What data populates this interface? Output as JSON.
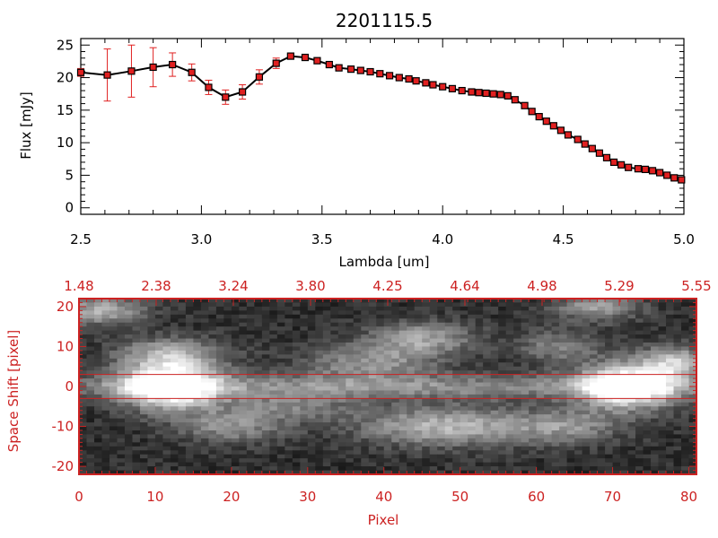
{
  "chart_data": [
    {
      "type": "line",
      "title": "2201115.5",
      "xlabel": "Lambda [um]",
      "ylabel": "Flux [mJy]",
      "xlim": [
        2.5,
        5.0
      ],
      "ylim": [
        -1,
        26
      ],
      "xticks": [
        "2.5",
        "3.0",
        "3.5",
        "4.0",
        "4.5",
        "5.0"
      ],
      "yticks": [
        "0",
        "5",
        "10",
        "15",
        "20",
        "25"
      ],
      "line_color": "#000000",
      "marker_color": "#e02020",
      "errorbar_color": "#e02020",
      "grid": false,
      "series": [
        {
          "x": [
            2.5,
            2.61,
            2.71,
            2.8,
            2.88,
            2.96,
            3.03,
            3.1,
            3.17,
            3.24,
            3.31,
            3.37,
            3.43,
            3.48,
            3.53,
            3.57,
            3.62,
            3.66,
            3.7,
            3.74,
            3.78,
            3.82,
            3.86,
            3.89,
            3.93,
            3.96,
            4.0,
            4.04,
            4.08,
            4.12,
            4.15,
            4.18,
            4.21,
            4.24,
            4.27,
            4.3,
            4.34,
            4.37,
            4.4,
            4.43,
            4.46,
            4.49,
            4.52,
            4.56,
            4.59,
            4.62,
            4.65,
            4.68,
            4.71,
            4.74,
            4.77,
            4.81,
            4.84,
            4.87,
            4.9,
            4.93,
            4.96,
            4.99
          ],
          "y": [
            20.8,
            20.4,
            21.0,
            21.6,
            22.0,
            20.8,
            18.5,
            17.0,
            17.8,
            20.1,
            22.2,
            23.3,
            23.1,
            22.6,
            22.0,
            21.5,
            21.3,
            21.1,
            20.9,
            20.6,
            20.3,
            20.0,
            19.8,
            19.5,
            19.2,
            18.9,
            18.6,
            18.3,
            18.0,
            17.8,
            17.7,
            17.6,
            17.5,
            17.4,
            17.2,
            16.6,
            15.7,
            14.8,
            14.0,
            13.3,
            12.6,
            11.9,
            11.2,
            10.5,
            9.8,
            9.1,
            8.4,
            7.7,
            7.0,
            6.6,
            6.2,
            6.0,
            5.9,
            5.7,
            5.4,
            5.0,
            4.6,
            4.3
          ],
          "yerr": [
            0.6,
            4.0,
            4.0,
            3.0,
            1.8,
            1.3,
            1.1,
            1.1,
            1.1,
            1.1,
            0.8,
            0.3,
            0.2,
            0.2,
            0.2,
            0.2,
            0.2,
            0.2,
            0.2,
            0.2,
            0.2,
            0.2,
            0.2,
            0.2,
            0.2,
            0.2,
            0.2,
            0.2,
            0.2,
            0.2,
            0.2,
            0.2,
            0.2,
            0.2,
            0.2,
            0.2,
            0.2,
            0.2,
            0.2,
            0.2,
            0.2,
            0.2,
            0.2,
            0.2,
            0.2,
            0.2,
            0.2,
            0.2,
            0.2,
            0.2,
            0.2,
            0.2,
            0.2,
            0.2,
            0.2,
            0.2,
            0.2,
            0.2
          ]
        }
      ]
    },
    {
      "type": "heatmap",
      "xlabel": "Pixel",
      "ylabel": "Space Shift [pixel]",
      "xlim": [
        0,
        81
      ],
      "ylim": [
        -22,
        22
      ],
      "xticks": [
        "0",
        "10",
        "20",
        "30",
        "40",
        "50",
        "60",
        "70",
        "80"
      ],
      "yticks": [
        "-20",
        "-10",
        "0",
        "10",
        "20"
      ],
      "top_ticks": [
        "1.48",
        "2.38",
        "3.24",
        "3.80",
        "4.25",
        "4.64",
        "4.98",
        "5.29",
        "5.55"
      ],
      "extraction_band": [
        -3,
        3
      ],
      "axis_color": "#cc2222",
      "colormap": "grayscale",
      "blobs": [
        {
          "x": 12,
          "y": 0,
          "sx": 4.5,
          "sy": 4.0,
          "v": 255
        },
        {
          "x": 72,
          "y": 0,
          "sx": 4.5,
          "sy": 4.0,
          "v": 240
        },
        {
          "x": 40,
          "y": 0,
          "sx": 40,
          "sy": 2.2,
          "v": 95
        },
        {
          "x": 12,
          "y": 8,
          "sx": 5,
          "sy": 3,
          "v": 120
        },
        {
          "x": 3,
          "y": 19,
          "sx": 4,
          "sy": 2.5,
          "v": 130
        },
        {
          "x": 45,
          "y": 12,
          "sx": 5,
          "sy": 3,
          "v": 115
        },
        {
          "x": 38,
          "y": 6,
          "sx": 6,
          "sy": 3,
          "v": 100
        },
        {
          "x": 48,
          "y": -10,
          "sx": 8,
          "sy": 3.5,
          "v": 135
        },
        {
          "x": 20,
          "y": -10,
          "sx": 5,
          "sy": 3,
          "v": 95
        },
        {
          "x": 64,
          "y": -10,
          "sx": 5,
          "sy": 3,
          "v": 90
        },
        {
          "x": 63,
          "y": 10,
          "sx": 4,
          "sy": 3,
          "v": 80
        },
        {
          "x": 68,
          "y": 20,
          "sx": 4,
          "sy": 2.5,
          "v": 110
        },
        {
          "x": 78,
          "y": 6,
          "sx": 3,
          "sy": 3,
          "v": 140
        },
        {
          "x": 28,
          "y": -5,
          "sx": 6,
          "sy": 2.5,
          "v": 70
        }
      ]
    }
  ]
}
